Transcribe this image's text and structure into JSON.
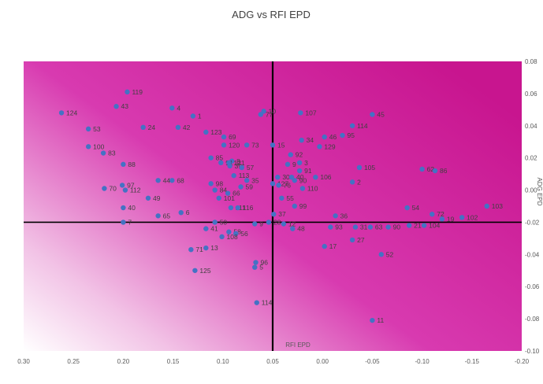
{
  "chart_data": {
    "type": "scatter",
    "title": "ADG vs RFI EPD",
    "xlabel": "RFI EPD",
    "ylabel": "ADG EPD",
    "x_reversed": true,
    "xlim": [
      0.3,
      -0.2
    ],
    "ylim": [
      -0.1,
      0.08
    ],
    "x_ticks": [
      "0.30",
      "0.25",
      "0.20",
      "0.15",
      "0.10",
      "0.05",
      "0.00",
      "-0.05",
      "-0.10",
      "-0.15",
      "-0.20"
    ],
    "y_ticks": [
      "0.08",
      "0.06",
      "0.04",
      "0.02",
      "0.00",
      "-0.02",
      "-0.04",
      "-0.06",
      "-0.08",
      "-0.10"
    ],
    "reference_lines": {
      "x": 0.05,
      "y": -0.02
    },
    "marker_color": "#4472C4",
    "background": "gradient from white (bottom-left) to magenta (right)",
    "background_colors": [
      "#ffffff",
      "#f2c3e6",
      "#d83ab0",
      "#c8158f"
    ],
    "points": [
      {
        "label": "119",
        "x": 0.196,
        "y": 0.061
      },
      {
        "label": "43",
        "x": 0.207,
        "y": 0.052
      },
      {
        "label": "4",
        "x": 0.151,
        "y": 0.051
      },
      {
        "label": "124",
        "x": 0.262,
        "y": 0.048
      },
      {
        "label": "1",
        "x": 0.13,
        "y": 0.046
      },
      {
        "label": "53",
        "x": 0.235,
        "y": 0.038
      },
      {
        "label": "24",
        "x": 0.18,
        "y": 0.039
      },
      {
        "label": "42",
        "x": 0.145,
        "y": 0.039
      },
      {
        "label": "123",
        "x": 0.117,
        "y": 0.036
      },
      {
        "label": "69",
        "x": 0.099,
        "y": 0.033
      },
      {
        "label": "100",
        "x": 0.235,
        "y": 0.027
      },
      {
        "label": "83",
        "x": 0.22,
        "y": 0.023
      },
      {
        "label": "120",
        "x": 0.099,
        "y": 0.028
      },
      {
        "label": "73",
        "x": 0.076,
        "y": 0.028
      },
      {
        "label": "88",
        "x": 0.2,
        "y": 0.016
      },
      {
        "label": "85",
        "x": 0.112,
        "y": 0.02
      },
      {
        "label": "8",
        "x": 0.091,
        "y": 0.018
      },
      {
        "label": "91",
        "x": 0.102,
        "y": 0.017
      },
      {
        "label": "121",
        "x": 0.094,
        "y": 0.017
      },
      {
        "label": "39",
        "x": 0.093,
        "y": 0.015
      },
      {
        "label": "57",
        "x": 0.081,
        "y": 0.014
      },
      {
        "label": "68",
        "x": 0.151,
        "y": 0.006
      },
      {
        "label": "44",
        "x": 0.165,
        "y": 0.006
      },
      {
        "label": "113",
        "x": 0.089,
        "y": 0.009
      },
      {
        "label": "35",
        "x": 0.076,
        "y": 0.006
      },
      {
        "label": "98",
        "x": 0.112,
        "y": 0.004
      },
      {
        "label": "59",
        "x": 0.082,
        "y": 0.002
      },
      {
        "label": "97",
        "x": 0.201,
        "y": 0.003
      },
      {
        "label": "70",
        "x": 0.219,
        "y": 0.001
      },
      {
        "label": "112",
        "x": 0.198,
        "y": 0.0
      },
      {
        "label": "84",
        "x": 0.108,
        "y": 0.0
      },
      {
        "label": "66",
        "x": 0.095,
        "y": -0.002
      },
      {
        "label": "49",
        "x": 0.175,
        "y": -0.005
      },
      {
        "label": "101",
        "x": 0.104,
        "y": -0.005
      },
      {
        "label": "40",
        "x": 0.2,
        "y": -0.011
      },
      {
        "label": "111",
        "x": 0.092,
        "y": -0.011
      },
      {
        "label": "116",
        "x": 0.085,
        "y": -0.011
      },
      {
        "label": "6",
        "x": 0.142,
        "y": -0.014
      },
      {
        "label": "65",
        "x": 0.165,
        "y": -0.016
      },
      {
        "label": "7",
        "x": 0.2,
        "y": -0.02
      },
      {
        "label": "50",
        "x": 0.108,
        "y": -0.02
      },
      {
        "label": "9",
        "x": 0.068,
        "y": -0.021
      },
      {
        "label": "41",
        "x": 0.117,
        "y": -0.024
      },
      {
        "label": "58",
        "x": 0.094,
        "y": -0.026
      },
      {
        "label": "56",
        "x": 0.087,
        "y": -0.027
      },
      {
        "label": "108",
        "x": 0.101,
        "y": -0.029
      },
      {
        "label": "71",
        "x": 0.132,
        "y": -0.037
      },
      {
        "label": "13",
        "x": 0.117,
        "y": -0.036
      },
      {
        "label": "125",
        "x": 0.128,
        "y": -0.05
      },
      {
        "label": "96",
        "x": 0.067,
        "y": -0.045
      },
      {
        "label": "5",
        "x": 0.068,
        "y": -0.048
      },
      {
        "label": "114",
        "x": 0.066,
        "y": -0.07
      },
      {
        "label": "10",
        "x": 0.059,
        "y": 0.049
      },
      {
        "label": "77",
        "x": 0.062,
        "y": 0.047
      },
      {
        "label": "107",
        "x": 0.022,
        "y": 0.048
      },
      {
        "label": "45",
        "x": -0.05,
        "y": 0.047
      },
      {
        "label": "114",
        "x": -0.03,
        "y": 0.04
      },
      {
        "label": "95",
        "x": -0.02,
        "y": 0.034
      },
      {
        "label": "46",
        "x": -0.002,
        "y": 0.033
      },
      {
        "label": "34",
        "x": 0.021,
        "y": 0.031
      },
      {
        "label": "15",
        "x": 0.05,
        "y": 0.028
      },
      {
        "label": "129",
        "x": 0.003,
        "y": 0.027
      },
      {
        "label": "92",
        "x": 0.032,
        "y": 0.022
      },
      {
        "label": "3",
        "x": 0.023,
        "y": 0.017
      },
      {
        "label": "9",
        "x": 0.035,
        "y": 0.016
      },
      {
        "label": "105",
        "x": -0.037,
        "y": 0.014
      },
      {
        "label": "62",
        "x": -0.1,
        "y": 0.013
      },
      {
        "label": "86",
        "x": -0.113,
        "y": 0.012
      },
      {
        "label": "91",
        "x": 0.023,
        "y": 0.012
      },
      {
        "label": "30",
        "x": 0.045,
        "y": 0.008
      },
      {
        "label": "40",
        "x": 0.031,
        "y": 0.008
      },
      {
        "label": "106",
        "x": 0.007,
        "y": 0.008
      },
      {
        "label": "127",
        "x": 0.05,
        "y": 0.004
      },
      {
        "label": "90",
        "x": 0.028,
        "y": 0.006
      },
      {
        "label": "76",
        "x": 0.044,
        "y": 0.003
      },
      {
        "label": "2",
        "x": -0.03,
        "y": 0.005
      },
      {
        "label": "110",
        "x": 0.02,
        "y": 0.001
      },
      {
        "label": "55",
        "x": 0.041,
        "y": -0.005
      },
      {
        "label": "99",
        "x": 0.028,
        "y": -0.01
      },
      {
        "label": "37",
        "x": 0.049,
        "y": -0.015
      },
      {
        "label": "54",
        "x": -0.085,
        "y": -0.011
      },
      {
        "label": "103",
        "x": -0.165,
        "y": -0.01
      },
      {
        "label": "72",
        "x": -0.11,
        "y": -0.015
      },
      {
        "label": "102",
        "x": -0.14,
        "y": -0.017
      },
      {
        "label": "19",
        "x": -0.12,
        "y": -0.018
      },
      {
        "label": "36",
        "x": -0.013,
        "y": -0.016
      },
      {
        "label": "28",
        "x": 0.054,
        "y": -0.02
      },
      {
        "label": "12",
        "x": 0.039,
        "y": -0.021
      },
      {
        "label": "48",
        "x": 0.03,
        "y": -0.024
      },
      {
        "label": "93",
        "x": -0.008,
        "y": -0.023
      },
      {
        "label": "31",
        "x": -0.033,
        "y": -0.023
      },
      {
        "label": "63",
        "x": -0.048,
        "y": -0.023
      },
      {
        "label": "90",
        "x": -0.066,
        "y": -0.023
      },
      {
        "label": "21",
        "x": -0.087,
        "y": -0.022
      },
      {
        "label": "104",
        "x": -0.102,
        "y": -0.022
      },
      {
        "label": "27",
        "x": -0.03,
        "y": -0.031
      },
      {
        "label": "17",
        "x": -0.002,
        "y": -0.035
      },
      {
        "label": "52",
        "x": -0.059,
        "y": -0.04
      },
      {
        "label": "11",
        "x": -0.05,
        "y": -0.081
      }
    ]
  }
}
